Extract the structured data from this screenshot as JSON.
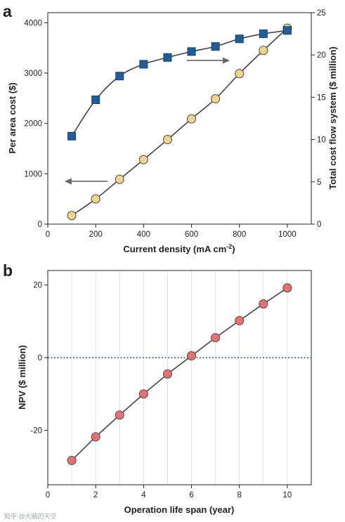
{
  "watermark": "知乎 @大脑的天空",
  "chart_data": [
    {
      "type": "line",
      "panel_label": "a",
      "xlabel": "Current density (mA cm",
      "xlabel_sup": "-2",
      "xlabel_end": ")",
      "ylabel": "Per area cost ($)",
      "y2label": "Total cost flow system ($ million)",
      "xlim": [
        0,
        1100
      ],
      "ylim": [
        0,
        4200
      ],
      "y2lim": [
        0,
        25
      ],
      "x_ticks": [
        0,
        200,
        400,
        600,
        800,
        1000
      ],
      "y_ticks": [
        0,
        1000,
        2000,
        3000,
        4000
      ],
      "y2_ticks": [
        0,
        5,
        10,
        15,
        20,
        25
      ],
      "grid": false,
      "legend": "none",
      "series": [
        {
          "axis": "left",
          "marker": "circle",
          "color": "#f0d58c",
          "x": [
            100,
            200,
            300,
            400,
            500,
            600,
            700,
            800,
            900,
            1000
          ],
          "values": [
            170,
            500,
            890,
            1280,
            1680,
            2090,
            2490,
            2990,
            3450,
            3890
          ]
        },
        {
          "axis": "right",
          "marker": "square",
          "color": "#1f5e9a",
          "x": [
            100,
            200,
            300,
            400,
            500,
            600,
            700,
            800,
            900,
            1000
          ],
          "values": [
            10.4,
            14.7,
            17.5,
            18.9,
            19.7,
            20.4,
            21.0,
            21.9,
            22.5,
            22.9
          ]
        }
      ],
      "annotations": [
        {
          "type": "arrow",
          "direction": "left",
          "points_to_axis": "left",
          "x_from": 250,
          "x_to": 70,
          "y": 850
        },
        {
          "type": "arrow",
          "direction": "right",
          "points_to_axis": "right",
          "x_from": 580,
          "x_to": 760,
          "y": 3250
        }
      ]
    },
    {
      "type": "line",
      "panel_label": "b",
      "xlabel": "Operation life span (year)",
      "ylabel": "NPV ($ million)",
      "xlim": [
        0,
        11
      ],
      "ylim": [
        -35,
        24
      ],
      "x_ticks": [
        0,
        2,
        4,
        6,
        8,
        10
      ],
      "y_ticks": [
        -20,
        0,
        20
      ],
      "grid": "vertical",
      "legend": "none",
      "reference_line": {
        "y": 0,
        "style": "dotted",
        "color": "#2a6aa8"
      },
      "series": [
        {
          "marker": "circle",
          "color": "#e87070",
          "x": [
            1,
            2,
            3,
            4,
            5,
            6,
            7,
            8,
            9,
            10
          ],
          "values": [
            -28.3,
            -21.8,
            -15.8,
            -10.0,
            -4.5,
            0.5,
            5.5,
            10.2,
            14.8,
            19.2
          ]
        }
      ]
    }
  ]
}
